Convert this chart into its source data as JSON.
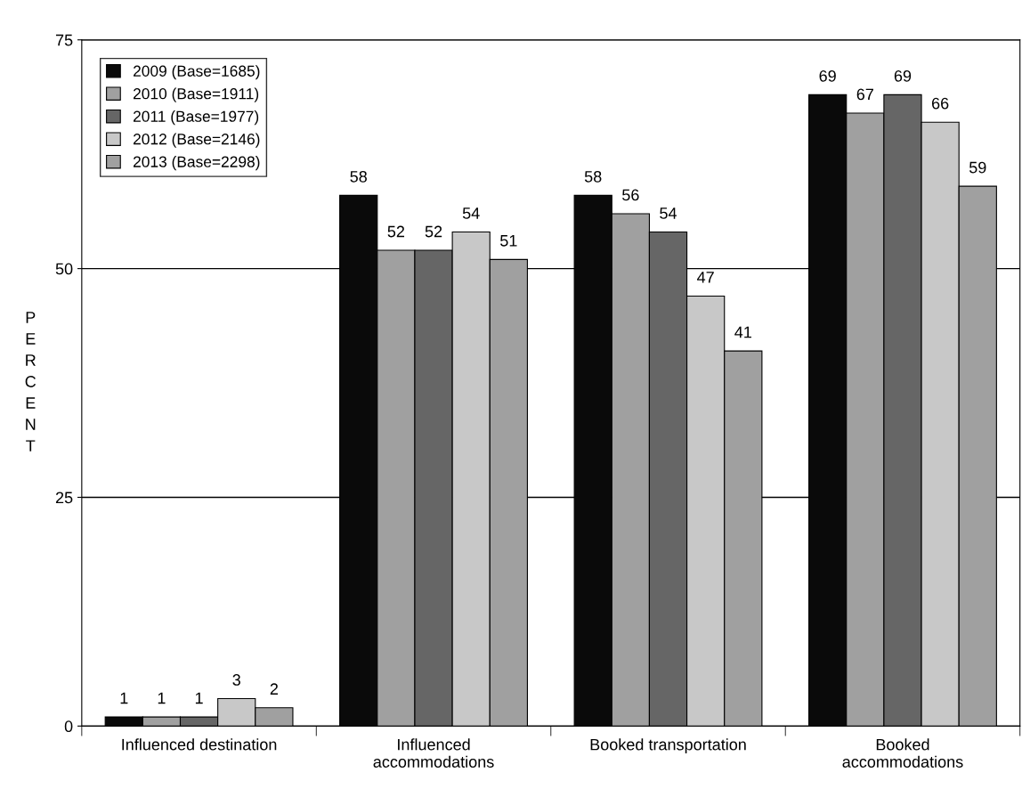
{
  "chart_data": {
    "type": "bar",
    "ylabel": "PERCENT",
    "categories": [
      "Influenced destination",
      "Influenced\naccommodations",
      "Booked transportation",
      "Booked\naccommodations"
    ],
    "series": [
      {
        "name": "2009 (Base=1685)",
        "color": "#0a0a0a",
        "values": [
          1,
          58,
          58,
          69
        ]
      },
      {
        "name": "2010 (Base=1911)",
        "color": "#a0a0a0",
        "values": [
          1,
          52,
          56,
          67
        ]
      },
      {
        "name": "2011 (Base=1977)",
        "color": "#666666",
        "values": [
          1,
          52,
          54,
          69
        ]
      },
      {
        "name": "2012 (Base=2146)",
        "color": "#c8c8c8",
        "values": [
          3,
          54,
          47,
          66
        ]
      },
      {
        "name": "2013 (Base=2298)",
        "color": "#a0a0a0",
        "values": [
          2,
          51,
          41,
          59
        ]
      }
    ],
    "ylim": [
      0,
      75
    ],
    "yticks": [
      0,
      25,
      50,
      75
    ],
    "grid": "y",
    "legend": "top left",
    "data_labels": true
  }
}
